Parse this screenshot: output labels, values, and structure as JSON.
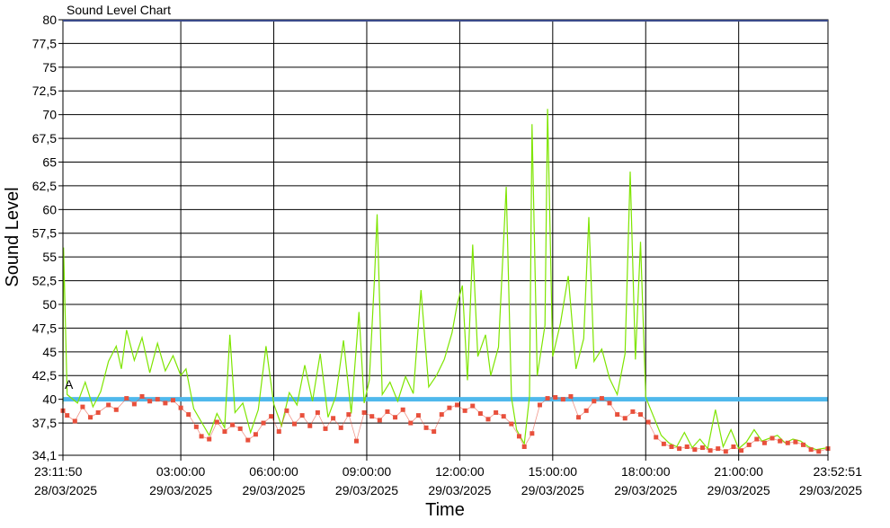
{
  "chart_data": {
    "type": "line",
    "title": "Sound Level Chart",
    "xlabel": "Time",
    "ylabel": "Sound Level",
    "ylim": [
      34.1,
      80
    ],
    "yticks": [
      34.1,
      37.5,
      40,
      42.5,
      45,
      47.5,
      50,
      52.5,
      55,
      57.5,
      60,
      62.5,
      65,
      67.5,
      70,
      72.5,
      75,
      77.5,
      80
    ],
    "ytick_labels": [
      "34,1",
      "37,5",
      "40",
      "42,5",
      "45",
      "47,5",
      "50",
      "52,5",
      "55",
      "57,5",
      "60",
      "62,5",
      "65",
      "67,5",
      "70",
      "72,5",
      "75",
      "77,5",
      "80"
    ],
    "xlim": [
      "2025-03-28T23:11:50",
      "2025-03-29T23:52:51"
    ],
    "xticks": [
      {
        "time": "2025-03-28T23:11:50",
        "label": "23:11:50",
        "date": "28/03/2025"
      },
      {
        "time": "2025-03-29T03:00:00",
        "label": "03:00:00",
        "date": "29/03/2025"
      },
      {
        "time": "2025-03-29T06:00:00",
        "label": "06:00:00",
        "date": "29/03/2025"
      },
      {
        "time": "2025-03-29T09:00:00",
        "label": "09:00:00",
        "date": "29/03/2025"
      },
      {
        "time": "2025-03-29T12:00:00",
        "label": "12:00:00",
        "date": "29/03/2025"
      },
      {
        "time": "2025-03-29T15:00:00",
        "label": "15:00:00",
        "date": "29/03/2025"
      },
      {
        "time": "2025-03-29T18:00:00",
        "label": "18:00:00",
        "date": "29/03/2025"
      },
      {
        "time": "2025-03-29T21:00:00",
        "label": "21:00:00",
        "date": "29/03/2025"
      },
      {
        "time": "2025-03-29T23:52:51",
        "label": "23:52:51",
        "date": "29/03/2025"
      }
    ],
    "grid": true,
    "threshold": {
      "value": 40,
      "color": "#4fb8ec"
    },
    "annotations": [
      {
        "text": "A",
        "time": "2025-03-28T23:11:50",
        "y": 41.5
      }
    ],
    "series": [
      {
        "color": "#7ee500",
        "style": "line",
        "points": [
          [
            "2025-03-28T23:11:50",
            39.5
          ],
          [
            "2025-03-28T23:13:00",
            56.0
          ],
          [
            "2025-03-28T23:20:00",
            40.5
          ],
          [
            "2025-03-28T23:40:00",
            39.6
          ],
          [
            "2025-03-28T23:55:00",
            41.8
          ],
          [
            "2025-03-29T00:10:00",
            39.2
          ],
          [
            "2025-03-29T00:25:00",
            40.8
          ],
          [
            "2025-03-29T00:40:00",
            44.0
          ],
          [
            "2025-03-29T00:55:00",
            45.6
          ],
          [
            "2025-03-29T01:05:00",
            43.2
          ],
          [
            "2025-03-29T01:15:00",
            47.3
          ],
          [
            "2025-03-29T01:30:00",
            44.1
          ],
          [
            "2025-03-29T01:45:00",
            46.5
          ],
          [
            "2025-03-29T02:00:00",
            42.8
          ],
          [
            "2025-03-29T02:15:00",
            45.9
          ],
          [
            "2025-03-29T02:30:00",
            43.0
          ],
          [
            "2025-03-29T02:45:00",
            44.6
          ],
          [
            "2025-03-29T03:00:00",
            42.5
          ],
          [
            "2025-03-29T03:10:00",
            43.2
          ],
          [
            "2025-03-29T03:25:00",
            39.0
          ],
          [
            "2025-03-29T03:40:00",
            37.6
          ],
          [
            "2025-03-29T03:55:00",
            36.2
          ],
          [
            "2025-03-29T04:10:00",
            38.5
          ],
          [
            "2025-03-29T04:25:00",
            37.0
          ],
          [
            "2025-03-29T04:35:00",
            46.8
          ],
          [
            "2025-03-29T04:45:00",
            38.6
          ],
          [
            "2025-03-29T05:00:00",
            39.6
          ],
          [
            "2025-03-29T05:15:00",
            36.5
          ],
          [
            "2025-03-29T05:30:00",
            38.9
          ],
          [
            "2025-03-29T05:45:00",
            45.6
          ],
          [
            "2025-03-29T06:00:00",
            39.5
          ],
          [
            "2025-03-29T06:15:00",
            37.2
          ],
          [
            "2025-03-29T06:30:00",
            40.7
          ],
          [
            "2025-03-29T06:45:00",
            39.4
          ],
          [
            "2025-03-29T07:00:00",
            43.6
          ],
          [
            "2025-03-29T07:15:00",
            39.8
          ],
          [
            "2025-03-29T07:30:00",
            44.8
          ],
          [
            "2025-03-29T07:45:00",
            38.1
          ],
          [
            "2025-03-29T08:00:00",
            40.3
          ],
          [
            "2025-03-29T08:15:00",
            46.2
          ],
          [
            "2025-03-29T08:30:00",
            38.5
          ],
          [
            "2025-03-29T08:45:00",
            49.2
          ],
          [
            "2025-03-29T08:55:00",
            39.6
          ],
          [
            "2025-03-29T09:05:00",
            42.0
          ],
          [
            "2025-03-29T09:15:00",
            52.8
          ],
          [
            "2025-03-29T09:20:00",
            59.5
          ],
          [
            "2025-03-29T09:30:00",
            40.5
          ],
          [
            "2025-03-29T09:45:00",
            41.8
          ],
          [
            "2025-03-29T10:00:00",
            39.8
          ],
          [
            "2025-03-29T10:15:00",
            42.4
          ],
          [
            "2025-03-29T10:30:00",
            40.6
          ],
          [
            "2025-03-29T10:45:00",
            51.5
          ],
          [
            "2025-03-29T11:00:00",
            41.3
          ],
          [
            "2025-03-29T11:15:00",
            42.5
          ],
          [
            "2025-03-29T11:30:00",
            44.2
          ],
          [
            "2025-03-29T11:45:00",
            47.0
          ],
          [
            "2025-03-29T11:55:00",
            50.0
          ],
          [
            "2025-03-29T12:05:00",
            52.0
          ],
          [
            "2025-03-29T12:15:00",
            42.0
          ],
          [
            "2025-03-29T12:25:00",
            56.3
          ],
          [
            "2025-03-29T12:35:00",
            44.5
          ],
          [
            "2025-03-29T12:50:00",
            46.8
          ],
          [
            "2025-03-29T13:00:00",
            42.5
          ],
          [
            "2025-03-29T13:15:00",
            45.5
          ],
          [
            "2025-03-29T13:30:00",
            62.4
          ],
          [
            "2025-03-29T13:40:00",
            40.2
          ],
          [
            "2025-03-29T13:50:00",
            36.8
          ],
          [
            "2025-03-29T14:05:00",
            35.3
          ],
          [
            "2025-03-29T14:15:00",
            40.3
          ],
          [
            "2025-03-29T14:20:00",
            69.0
          ],
          [
            "2025-03-29T14:30:00",
            42.5
          ],
          [
            "2025-03-29T14:45:00",
            47.8
          ],
          [
            "2025-03-29T14:50:00",
            70.6
          ],
          [
            "2025-03-29T15:00:00",
            44.5
          ],
          [
            "2025-03-29T15:15:00",
            48.0
          ],
          [
            "2025-03-29T15:30:00",
            53.0
          ],
          [
            "2025-03-29T15:45:00",
            43.2
          ],
          [
            "2025-03-29T16:00:00",
            46.4
          ],
          [
            "2025-03-29T16:10:00",
            59.2
          ],
          [
            "2025-03-29T16:20:00",
            44.0
          ],
          [
            "2025-03-29T16:35:00",
            45.3
          ],
          [
            "2025-03-29T16:50:00",
            42.2
          ],
          [
            "2025-03-29T17:05:00",
            40.5
          ],
          [
            "2025-03-29T17:20:00",
            44.8
          ],
          [
            "2025-03-29T17:30:00",
            64.0
          ],
          [
            "2025-03-29T17:40:00",
            44.2
          ],
          [
            "2025-03-29T17:50:00",
            56.6
          ],
          [
            "2025-03-29T18:00:00",
            40.2
          ],
          [
            "2025-03-29T18:15:00",
            38.2
          ],
          [
            "2025-03-29T18:30:00",
            36.2
          ],
          [
            "2025-03-29T18:45:00",
            35.4
          ],
          [
            "2025-03-29T19:00:00",
            35.0
          ],
          [
            "2025-03-29T19:15:00",
            36.5
          ],
          [
            "2025-03-29T19:30:00",
            34.9
          ],
          [
            "2025-03-29T19:45:00",
            35.8
          ],
          [
            "2025-03-29T20:00:00",
            34.8
          ],
          [
            "2025-03-29T20:15:00",
            38.9
          ],
          [
            "2025-03-29T20:30:00",
            35.0
          ],
          [
            "2025-03-29T20:45:00",
            36.8
          ],
          [
            "2025-03-29T21:00:00",
            34.8
          ],
          [
            "2025-03-29T21:15:00",
            35.5
          ],
          [
            "2025-03-29T21:30:00",
            36.8
          ],
          [
            "2025-03-29T21:45:00",
            35.6
          ],
          [
            "2025-03-29T22:00:00",
            35.9
          ],
          [
            "2025-03-29T22:15:00",
            36.2
          ],
          [
            "2025-03-29T22:30:00",
            35.4
          ],
          [
            "2025-03-29T22:45:00",
            35.8
          ],
          [
            "2025-03-29T23:00:00",
            35.6
          ],
          [
            "2025-03-29T23:15:00",
            35.0
          ],
          [
            "2025-03-29T23:30:00",
            34.7
          ],
          [
            "2025-03-29T23:52:51",
            34.9
          ]
        ]
      },
      {
        "color": "#e8503c",
        "style": "markers",
        "points": [
          [
            "2025-03-28T23:11:50",
            38.8
          ],
          [
            "2025-03-28T23:20:00",
            38.3
          ],
          [
            "2025-03-28T23:35:00",
            37.7
          ],
          [
            "2025-03-28T23:50:00",
            39.2
          ],
          [
            "2025-03-29T00:05:00",
            38.1
          ],
          [
            "2025-03-29T00:20:00",
            38.6
          ],
          [
            "2025-03-29T00:40:00",
            39.4
          ],
          [
            "2025-03-29T00:55:00",
            38.9
          ],
          [
            "2025-03-29T01:15:00",
            40.1
          ],
          [
            "2025-03-29T01:30:00",
            39.5
          ],
          [
            "2025-03-29T01:45:00",
            40.3
          ],
          [
            "2025-03-29T02:00:00",
            39.8
          ],
          [
            "2025-03-29T02:15:00",
            40.0
          ],
          [
            "2025-03-29T02:30:00",
            39.6
          ],
          [
            "2025-03-29T02:45:00",
            39.9
          ],
          [
            "2025-03-29T03:00:00",
            39.1
          ],
          [
            "2025-03-29T03:15:00",
            38.4
          ],
          [
            "2025-03-29T03:30:00",
            37.1
          ],
          [
            "2025-03-29T03:40:00",
            36.1
          ],
          [
            "2025-03-29T03:55:00",
            35.8
          ],
          [
            "2025-03-29T04:10:00",
            37.6
          ],
          [
            "2025-03-29T04:25:00",
            36.6
          ],
          [
            "2025-03-29T04:40:00",
            37.3
          ],
          [
            "2025-03-29T04:55:00",
            36.9
          ],
          [
            "2025-03-29T05:10:00",
            35.7
          ],
          [
            "2025-03-29T05:25:00",
            36.3
          ],
          [
            "2025-03-29T05:40:00",
            37.5
          ],
          [
            "2025-03-29T05:55:00",
            38.2
          ],
          [
            "2025-03-29T06:10:00",
            36.6
          ],
          [
            "2025-03-29T06:25:00",
            38.8
          ],
          [
            "2025-03-29T06:40:00",
            37.4
          ],
          [
            "2025-03-29T06:55:00",
            38.3
          ],
          [
            "2025-03-29T07:10:00",
            37.2
          ],
          [
            "2025-03-29T07:25:00",
            38.6
          ],
          [
            "2025-03-29T07:40:00",
            36.9
          ],
          [
            "2025-03-29T07:55:00",
            38.0
          ],
          [
            "2025-03-29T08:10:00",
            37.0
          ],
          [
            "2025-03-29T08:25:00",
            38.4
          ],
          [
            "2025-03-29T08:40:00",
            35.6
          ],
          [
            "2025-03-29T08:55:00",
            38.6
          ],
          [
            "2025-03-29T09:10:00",
            38.2
          ],
          [
            "2025-03-29T09:25:00",
            37.8
          ],
          [
            "2025-03-29T09:40:00",
            38.7
          ],
          [
            "2025-03-29T09:55:00",
            38.1
          ],
          [
            "2025-03-29T10:10:00",
            38.9
          ],
          [
            "2025-03-29T10:25:00",
            37.5
          ],
          [
            "2025-03-29T10:40:00",
            38.3
          ],
          [
            "2025-03-29T10:55:00",
            37.0
          ],
          [
            "2025-03-29T11:10:00",
            36.6
          ],
          [
            "2025-03-29T11:25:00",
            38.4
          ],
          [
            "2025-03-29T11:40:00",
            39.1
          ],
          [
            "2025-03-29T11:55:00",
            39.4
          ],
          [
            "2025-03-29T12:10:00",
            38.8
          ],
          [
            "2025-03-29T12:25:00",
            39.3
          ],
          [
            "2025-03-29T12:40:00",
            38.5
          ],
          [
            "2025-03-29T12:55:00",
            37.9
          ],
          [
            "2025-03-29T13:10:00",
            38.6
          ],
          [
            "2025-03-29T13:25:00",
            38.2
          ],
          [
            "2025-03-29T13:40:00",
            37.4
          ],
          [
            "2025-03-29T13:55:00",
            36.1
          ],
          [
            "2025-03-29T14:05:00",
            35.0
          ],
          [
            "2025-03-29T14:20:00",
            36.4
          ],
          [
            "2025-03-29T14:35:00",
            39.4
          ],
          [
            "2025-03-29T14:50:00",
            40.1
          ],
          [
            "2025-03-29T15:05:00",
            40.2
          ],
          [
            "2025-03-29T15:20:00",
            40.0
          ],
          [
            "2025-03-29T15:35:00",
            40.3
          ],
          [
            "2025-03-29T15:50:00",
            38.1
          ],
          [
            "2025-03-29T16:05:00",
            38.8
          ],
          [
            "2025-03-29T16:20:00",
            39.8
          ],
          [
            "2025-03-29T16:35:00",
            40.1
          ],
          [
            "2025-03-29T16:50:00",
            39.6
          ],
          [
            "2025-03-29T17:05:00",
            38.4
          ],
          [
            "2025-03-29T17:20:00",
            38.0
          ],
          [
            "2025-03-29T17:35:00",
            38.7
          ],
          [
            "2025-03-29T17:50:00",
            38.4
          ],
          [
            "2025-03-29T18:05:00",
            37.6
          ],
          [
            "2025-03-29T18:20:00",
            36.0
          ],
          [
            "2025-03-29T18:35:00",
            35.3
          ],
          [
            "2025-03-29T18:50:00",
            35.0
          ],
          [
            "2025-03-29T19:05:00",
            34.8
          ],
          [
            "2025-03-29T19:20:00",
            35.0
          ],
          [
            "2025-03-29T19:35:00",
            34.7
          ],
          [
            "2025-03-29T19:50:00",
            34.9
          ],
          [
            "2025-03-29T20:05:00",
            34.6
          ],
          [
            "2025-03-29T20:20:00",
            34.8
          ],
          [
            "2025-03-29T20:35:00",
            34.5
          ],
          [
            "2025-03-29T20:50:00",
            35.0
          ],
          [
            "2025-03-29T21:05:00",
            34.6
          ],
          [
            "2025-03-29T21:20:00",
            35.2
          ],
          [
            "2025-03-29T21:35:00",
            35.8
          ],
          [
            "2025-03-29T21:50:00",
            35.4
          ],
          [
            "2025-03-29T22:05:00",
            35.9
          ],
          [
            "2025-03-29T22:20:00",
            35.6
          ],
          [
            "2025-03-29T22:35:00",
            35.4
          ],
          [
            "2025-03-29T22:50:00",
            35.5
          ],
          [
            "2025-03-29T23:05:00",
            35.2
          ],
          [
            "2025-03-29T23:20:00",
            34.7
          ],
          [
            "2025-03-29T23:35:00",
            34.5
          ],
          [
            "2025-03-29T23:52:51",
            34.8
          ]
        ]
      }
    ]
  }
}
